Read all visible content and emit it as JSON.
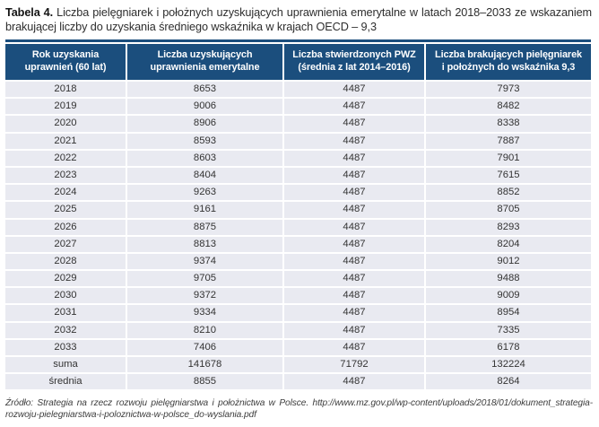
{
  "title": {
    "label": "Tabela 4.",
    "text": " Liczba pielęgniarek i położnych uzyskujących uprawnienia emerytalne w latach 2018–2033 ze wskazaniem brakującej liczby do uzyskania średniego wskaźnika w krajach OECD – 9,3"
  },
  "table": {
    "columns": [
      {
        "label": "Rok uzyskania uprawnień (60 lat)",
        "lines": [
          "Rok uzyskania",
          "uprawnień (60 lat)"
        ]
      },
      {
        "label": "Liczba uzyskujących uprawnienia emerytalne",
        "lines": [
          "Liczba uzyskujących",
          "uprawnienia emerytalne"
        ]
      },
      {
        "label": "Liczba stwierdzonych PWZ (średnia z lat 2014–2016)",
        "lines": [
          "Liczba stwierdzonych PWZ",
          "(średnia z lat 2014–2016)"
        ]
      },
      {
        "label": "Liczba brakujących pielęgniarek i położnych do wskaźnika 9,3",
        "lines": [
          "Liczba brakujących pielęgniarek",
          "i położnych do wskaźnika 9,3"
        ]
      }
    ],
    "rows": [
      [
        "2018",
        "8653",
        "4487",
        "7973"
      ],
      [
        "2019",
        "9006",
        "4487",
        "8482"
      ],
      [
        "2020",
        "8906",
        "4487",
        "8338"
      ],
      [
        "2021",
        "8593",
        "4487",
        "7887"
      ],
      [
        "2022",
        "8603",
        "4487",
        "7901"
      ],
      [
        "2023",
        "8404",
        "4487",
        "7615"
      ],
      [
        "2024",
        "9263",
        "4487",
        "8852"
      ],
      [
        "2025",
        "9161",
        "4487",
        "8705"
      ],
      [
        "2026",
        "8875",
        "4487",
        "8293"
      ],
      [
        "2027",
        "8813",
        "4487",
        "8204"
      ],
      [
        "2028",
        "9374",
        "4487",
        "9012"
      ],
      [
        "2029",
        "9705",
        "4487",
        "9488"
      ],
      [
        "2030",
        "9372",
        "4487",
        "9009"
      ],
      [
        "2031",
        "9334",
        "4487",
        "8954"
      ],
      [
        "2032",
        "8210",
        "4487",
        "7335"
      ],
      [
        "2033",
        "7406",
        "4487",
        "6178"
      ],
      [
        "suma",
        "141678",
        "71792",
        "132224"
      ],
      [
        "średnia",
        "8855",
        "4487",
        "8264"
      ]
    ]
  },
  "source_note": "Źródło: Strategia na rzecz rozwoju pielęgniarstwa i położnictwa w Polsce. http://www.mz.gov.pl/wp-content/uploads/2018/01/dokument_strategia-rozwoju-pielegniarstwa-i-poloznictwa-w-polsce_do-wyslania.pdf",
  "colors": {
    "header_bg": "#1b4e7d",
    "row_bg": "#e9eaf1",
    "header_text": "#ffffff",
    "body_text": "#333333"
  }
}
